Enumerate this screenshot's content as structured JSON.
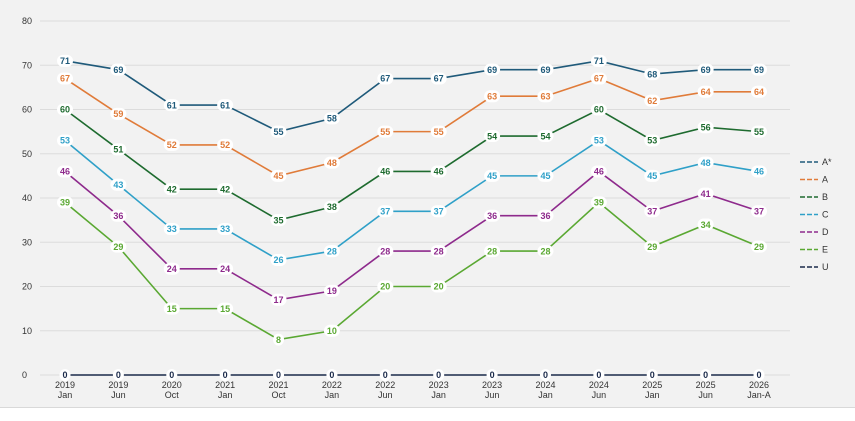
{
  "chart_data": {
    "type": "line",
    "title": "",
    "xlabel": "",
    "ylabel": "",
    "ylim": [
      0,
      80
    ],
    "yticks": [
      0,
      10,
      20,
      30,
      40,
      50,
      60,
      70,
      80
    ],
    "grid": true,
    "legend_position": "right",
    "categories": [
      [
        "2019",
        "Jan"
      ],
      [
        "2019",
        "Jun"
      ],
      [
        "2020",
        "Oct"
      ],
      [
        "2021",
        "Jan"
      ],
      [
        "2021",
        "Oct"
      ],
      [
        "2022",
        "Jan"
      ],
      [
        "2022",
        "Jun"
      ],
      [
        "2023",
        "Jan"
      ],
      [
        "2023",
        "Jun"
      ],
      [
        "2024",
        "Jan"
      ],
      [
        "2024",
        "Jun"
      ],
      [
        "2025",
        "Jan"
      ],
      [
        "2025",
        "Jun"
      ],
      [
        "2026",
        "Jan-A"
      ]
    ],
    "series": [
      {
        "name": "A*",
        "color": "#1f5a7a",
        "values": [
          71,
          69,
          61,
          61,
          55,
          58,
          67,
          67,
          69,
          69,
          71,
          68,
          69,
          69
        ]
      },
      {
        "name": "A",
        "color": "#e07b39",
        "values": [
          67,
          59,
          52,
          52,
          45,
          48,
          55,
          55,
          63,
          63,
          67,
          62,
          64,
          64
        ]
      },
      {
        "name": "B",
        "color": "#1e6b2f",
        "values": [
          60,
          51,
          42,
          42,
          35,
          38,
          46,
          46,
          54,
          54,
          60,
          53,
          56,
          55
        ]
      },
      {
        "name": "C",
        "color": "#2fa0c8",
        "values": [
          53,
          43,
          33,
          33,
          26,
          28,
          37,
          37,
          45,
          45,
          53,
          45,
          48,
          46
        ]
      },
      {
        "name": "D",
        "color": "#8e2a8c",
        "values": [
          46,
          36,
          24,
          24,
          17,
          19,
          28,
          28,
          36,
          36,
          46,
          37,
          41,
          37
        ]
      },
      {
        "name": "E",
        "color": "#5aa832",
        "values": [
          39,
          29,
          15,
          15,
          8,
          10,
          20,
          20,
          28,
          28,
          39,
          29,
          34,
          29
        ]
      },
      {
        "name": "U",
        "color": "#1b2a4a",
        "values": [
          0,
          0,
          0,
          0,
          0,
          0,
          0,
          0,
          0,
          0,
          0,
          0,
          0,
          0
        ]
      }
    ]
  }
}
